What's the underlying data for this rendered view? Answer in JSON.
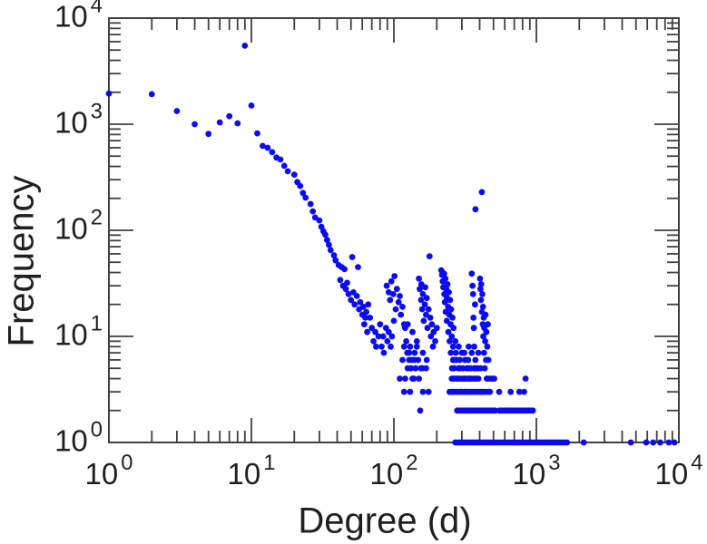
{
  "figure": {
    "background": "#ffffff",
    "axis_color": "#404040",
    "text_color": "#1f1f1f",
    "point_color": "#0b0bf2"
  },
  "chart_data": {
    "type": "scatter",
    "title": "",
    "xlabel": "Degree (d)",
    "ylabel": "Frequency",
    "x_scale": "log",
    "y_scale": "log",
    "xlim": [
      1,
      10000
    ],
    "ylim": [
      1,
      10000
    ],
    "tick_base": "10",
    "x_tick_exponents": [
      0,
      1,
      2,
      3,
      4
    ],
    "y_tick_exponents": [
      0,
      1,
      2,
      3,
      4
    ],
    "grid": false,
    "legend": null,
    "marker": "circle",
    "points": [
      [
        1,
        1950
      ],
      [
        2,
        1920
      ],
      [
        3,
        1330
      ],
      [
        4,
        1000
      ],
      [
        5,
        810
      ],
      [
        6,
        1040
      ],
      [
        7,
        1190
      ],
      [
        8,
        1020
      ],
      [
        9,
        5500
      ],
      [
        10,
        1500
      ],
      [
        11,
        820
      ],
      [
        12,
        625
      ],
      [
        13,
        600
      ],
      [
        14,
        545
      ],
      [
        15,
        485
      ],
      [
        16,
        465
      ],
      [
        17,
        405
      ],
      [
        18,
        360
      ],
      [
        20,
        335
      ],
      [
        21,
        285
      ],
      [
        22,
        262
      ],
      [
        23,
        225
      ],
      [
        24,
        203
      ],
      [
        26,
        177
      ],
      [
        27,
        151
      ],
      [
        28,
        132
      ],
      [
        30,
        124
      ],
      [
        31,
        108
      ],
      [
        32,
        98
      ],
      [
        33,
        91
      ],
      [
        34,
        81
      ],
      [
        35,
        73
      ],
      [
        36,
        65
      ],
      [
        38,
        58
      ],
      [
        39,
        52
      ],
      [
        41,
        47
      ],
      [
        43,
        45
      ],
      [
        45,
        43
      ],
      [
        51,
        56
      ],
      [
        56,
        45
      ],
      [
        42,
        34
      ],
      [
        44,
        30
      ],
      [
        46,
        28
      ],
      [
        47,
        32
      ],
      [
        48,
        25
      ],
      [
        50,
        22
      ],
      [
        52,
        26
      ],
      [
        53,
        20
      ],
      [
        55,
        24
      ],
      [
        57,
        18
      ],
      [
        58,
        21
      ],
      [
        60,
        16
      ],
      [
        61,
        19
      ],
      [
        63,
        15
      ],
      [
        64,
        17
      ],
      [
        66,
        20
      ],
      [
        68,
        15
      ],
      [
        62,
        13
      ],
      [
        65,
        11
      ],
      [
        70,
        12
      ],
      [
        72,
        9
      ],
      [
        74,
        11
      ],
      [
        75,
        8
      ],
      [
        78,
        10
      ],
      [
        80,
        13
      ],
      [
        82,
        8
      ],
      [
        84,
        10
      ],
      [
        85,
        7
      ],
      [
        88,
        12
      ],
      [
        90,
        9
      ],
      [
        92,
        11
      ],
      [
        95,
        8
      ],
      [
        97,
        10
      ],
      [
        100,
        14
      ],
      [
        89,
        30
      ],
      [
        92,
        26
      ],
      [
        94,
        22
      ],
      [
        96,
        33
      ],
      [
        99,
        25
      ],
      [
        101,
        37
      ],
      [
        103,
        18
      ],
      [
        105,
        28
      ],
      [
        108,
        21
      ],
      [
        110,
        24
      ],
      [
        112,
        16
      ],
      [
        115,
        19
      ],
      [
        118,
        13
      ],
      [
        120,
        12
      ],
      [
        122,
        9
      ],
      [
        124,
        7
      ],
      [
        125,
        13
      ],
      [
        128,
        6
      ],
      [
        130,
        8
      ],
      [
        132,
        5
      ],
      [
        134,
        6
      ],
      [
        135,
        11
      ],
      [
        138,
        4
      ],
      [
        140,
        7
      ],
      [
        142,
        5
      ],
      [
        145,
        9
      ],
      [
        148,
        6
      ],
      [
        150,
        4
      ],
      [
        115,
        6
      ],
      [
        125,
        5
      ],
      [
        140,
        6
      ],
      [
        118,
        8
      ],
      [
        128,
        7
      ],
      [
        145,
        8
      ],
      [
        155,
        5
      ],
      [
        158,
        5
      ],
      [
        160,
        7
      ],
      [
        168,
        5
      ],
      [
        170,
        6
      ],
      [
        150,
        35
      ],
      [
        152,
        28
      ],
      [
        155,
        22
      ],
      [
        156,
        31
      ],
      [
        158,
        18
      ],
      [
        160,
        25
      ],
      [
        162,
        14
      ],
      [
        165,
        20
      ],
      [
        166,
        29
      ],
      [
        168,
        16
      ],
      [
        170,
        23
      ],
      [
        172,
        12
      ],
      [
        175,
        18
      ],
      [
        178,
        57
      ],
      [
        180,
        15
      ],
      [
        182,
        10
      ],
      [
        185,
        13
      ],
      [
        188,
        8
      ],
      [
        190,
        11
      ],
      [
        195,
        9
      ],
      [
        200,
        12
      ],
      [
        215,
        42
      ],
      [
        218,
        38
      ],
      [
        220,
        33
      ],
      [
        222,
        29
      ],
      [
        225,
        39
      ],
      [
        226,
        25
      ],
      [
        228,
        21
      ],
      [
        230,
        35
      ],
      [
        231,
        17
      ],
      [
        233,
        28
      ],
      [
        235,
        14
      ],
      [
        236,
        23
      ],
      [
        238,
        31
      ],
      [
        240,
        19
      ],
      [
        241,
        11
      ],
      [
        243,
        26
      ],
      [
        245,
        16
      ],
      [
        246,
        9
      ],
      [
        248,
        22
      ],
      [
        250,
        13
      ],
      [
        251,
        7
      ],
      [
        252,
        18
      ],
      [
        255,
        10
      ],
      [
        256,
        5
      ],
      [
        258,
        15
      ],
      [
        260,
        8
      ],
      [
        261,
        4
      ],
      [
        262,
        12
      ],
      [
        265,
        6
      ],
      [
        270,
        9
      ],
      [
        275,
        6
      ],
      [
        280,
        4
      ],
      [
        285,
        8
      ],
      [
        290,
        5
      ],
      [
        295,
        3
      ],
      [
        300,
        7
      ],
      [
        310,
        4
      ],
      [
        315,
        6
      ],
      [
        320,
        3
      ],
      [
        330,
        5
      ],
      [
        335,
        8
      ],
      [
        340,
        4
      ],
      [
        260,
        6
      ],
      [
        272,
        7
      ],
      [
        290,
        6
      ],
      [
        312,
        7
      ],
      [
        332,
        6
      ],
      [
        352,
        7
      ],
      [
        373,
        6
      ],
      [
        392,
        7
      ],
      [
        265,
        5
      ],
      [
        285,
        5
      ],
      [
        305,
        5
      ],
      [
        325,
        5
      ],
      [
        345,
        5
      ],
      [
        365,
        5
      ],
      [
        385,
        5
      ],
      [
        405,
        5
      ],
      [
        352,
        39
      ],
      [
        356,
        30
      ],
      [
        360,
        25
      ],
      [
        362,
        15
      ],
      [
        364,
        12
      ],
      [
        366,
        8
      ],
      [
        368,
        5
      ],
      [
        371,
        20
      ],
      [
        374,
        158
      ],
      [
        402,
        35
      ],
      [
        405,
        28
      ],
      [
        408,
        22
      ],
      [
        410,
        31
      ],
      [
        414,
        229
      ],
      [
        415,
        17
      ],
      [
        418,
        25
      ],
      [
        420,
        13
      ],
      [
        422,
        19
      ],
      [
        424,
        10
      ],
      [
        427,
        15
      ],
      [
        429,
        7
      ],
      [
        431,
        12
      ],
      [
        434,
        5
      ],
      [
        437,
        9
      ],
      [
        440,
        16
      ],
      [
        443,
        6
      ],
      [
        446,
        11
      ],
      [
        449,
        4
      ],
      [
        452,
        8
      ],
      [
        456,
        13
      ],
      [
        460,
        6
      ],
      [
        110,
        4
      ],
      [
        120,
        4
      ],
      [
        135,
        4
      ],
      [
        255,
        4
      ],
      [
        266,
        4
      ],
      [
        277,
        4
      ],
      [
        288,
        4
      ],
      [
        299,
        4
      ],
      [
        311,
        4
      ],
      [
        323,
        4
      ],
      [
        336,
        4
      ],
      [
        349,
        4
      ],
      [
        363,
        4
      ],
      [
        377,
        4
      ],
      [
        392,
        4
      ],
      [
        450,
        4
      ],
      [
        468,
        4
      ],
      [
        487,
        4
      ],
      [
        506,
        4
      ],
      [
        840,
        4
      ],
      [
        118,
        3
      ],
      [
        130,
        3
      ],
      [
        160,
        3
      ],
      [
        175,
        3
      ],
      [
        246,
        3
      ],
      [
        256,
        3
      ],
      [
        266,
        3
      ],
      [
        277,
        3
      ],
      [
        288,
        3
      ],
      [
        299,
        3
      ],
      [
        311,
        3
      ],
      [
        323,
        3
      ],
      [
        336,
        3
      ],
      [
        349,
        3
      ],
      [
        363,
        3
      ],
      [
        377,
        3
      ],
      [
        392,
        3
      ],
      [
        408,
        3
      ],
      [
        424,
        3
      ],
      [
        440,
        3
      ],
      [
        462,
        3
      ],
      [
        472,
        3
      ],
      [
        548,
        3
      ],
      [
        660,
        3
      ],
      [
        760,
        3
      ],
      [
        820,
        3
      ],
      [
        153,
        2
      ],
      [
        278,
        2
      ],
      [
        289,
        2
      ],
      [
        300,
        2
      ],
      [
        312,
        2
      ],
      [
        324,
        2
      ],
      [
        337,
        2
      ],
      [
        350,
        2
      ],
      [
        364,
        2
      ],
      [
        378,
        2
      ],
      [
        393,
        2
      ],
      [
        408,
        2
      ],
      [
        424,
        2
      ],
      [
        441,
        2
      ],
      [
        458,
        2
      ],
      [
        476,
        2
      ],
      [
        495,
        2
      ],
      [
        514,
        2
      ],
      [
        552,
        2
      ],
      [
        574,
        2
      ],
      [
        597,
        2
      ],
      [
        620,
        2
      ],
      [
        644,
        2
      ],
      [
        669,
        2
      ],
      [
        695,
        2
      ],
      [
        722,
        2
      ],
      [
        750,
        2
      ],
      [
        780,
        2
      ],
      [
        810,
        2
      ],
      [
        842,
        2
      ],
      [
        875,
        2
      ],
      [
        909,
        2
      ],
      [
        945,
        2
      ],
      [
        270,
        1
      ],
      [
        281,
        1
      ],
      [
        292,
        1
      ],
      [
        303,
        1
      ],
      [
        315,
        1
      ],
      [
        327,
        1
      ],
      [
        340,
        1
      ],
      [
        353,
        1
      ],
      [
        367,
        1
      ],
      [
        381,
        1
      ],
      [
        396,
        1
      ],
      [
        411,
        1
      ],
      [
        427,
        1
      ],
      [
        444,
        1
      ],
      [
        461,
        1
      ],
      [
        479,
        1
      ],
      [
        498,
        1
      ],
      [
        517,
        1
      ],
      [
        537,
        1
      ],
      [
        558,
        1
      ],
      [
        580,
        1
      ],
      [
        603,
        1
      ],
      [
        627,
        1
      ],
      [
        651,
        1
      ],
      [
        677,
        1
      ],
      [
        703,
        1
      ],
      [
        731,
        1
      ],
      [
        760,
        1
      ],
      [
        790,
        1
      ],
      [
        821,
        1
      ],
      [
        853,
        1
      ],
      [
        886,
        1
      ],
      [
        921,
        1
      ],
      [
        957,
        1
      ],
      [
        995,
        1
      ],
      [
        1034,
        1
      ],
      [
        1075,
        1
      ],
      [
        1117,
        1
      ],
      [
        1161,
        1
      ],
      [
        1206,
        1
      ],
      [
        1254,
        1
      ],
      [
        1303,
        1
      ],
      [
        1354,
        1
      ],
      [
        1407,
        1
      ],
      [
        1463,
        1
      ],
      [
        1520,
        1
      ],
      [
        1580,
        1
      ],
      [
        1642,
        1
      ],
      [
        2150,
        1
      ],
      [
        4600,
        1
      ],
      [
        5900,
        1
      ],
      [
        6600,
        1
      ],
      [
        7400,
        1
      ],
      [
        8500,
        1
      ],
      [
        9300,
        1
      ]
    ]
  }
}
